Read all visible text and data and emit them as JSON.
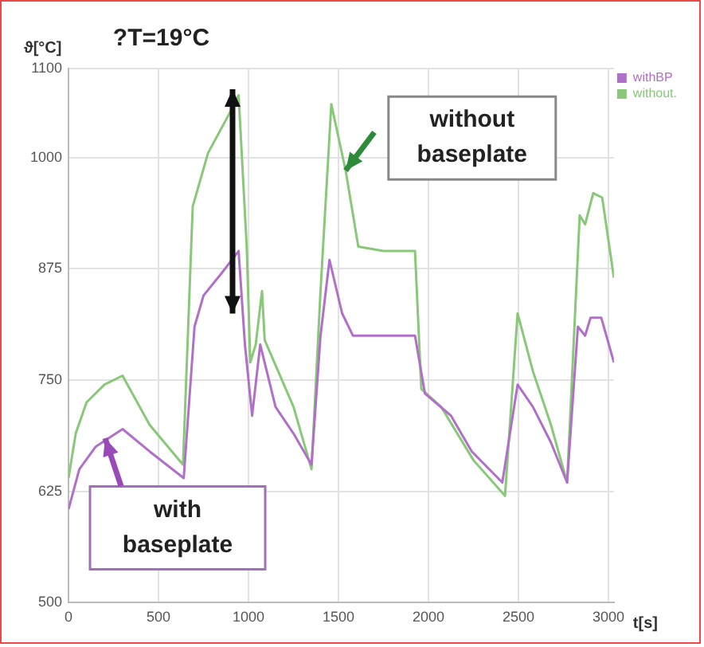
{
  "chart_data": {
    "type": "line",
    "xlabel": "t[s]",
    "ylabel": "ϑ[°C]",
    "xlim": [
      0,
      3030
    ],
    "xticks": [
      0,
      500,
      1000,
      1500,
      2000,
      2500,
      3000
    ],
    "ylim": [
      500,
      1100
    ],
    "yticks": [
      500,
      625,
      750,
      875,
      1000,
      1100
    ],
    "grid": true,
    "legend": "top right",
    "marker": "none",
    "line_style": "solid",
    "annotations": [
      "?T=19°C",
      {
        "text": "without baseplate",
        "x": 1540,
        "y": 985
      },
      {
        "text": "with baseplate",
        "x": 200,
        "y": 685
      }
    ],
    "series": [
      {
        "name": "withBP",
        "color": "#b070c8",
        "x": [
          0,
          60,
          150,
          300,
          450,
          640,
          700,
          750,
          850,
          945,
          980,
          1020,
          1065,
          1150,
          1250,
          1350,
          1400,
          1450,
          1520,
          1580,
          1750,
          1925,
          1980,
          2125,
          2240,
          2410,
          2495,
          2580,
          2680,
          2770,
          2830,
          2870,
          2900,
          2960,
          3030
        ],
        "values": [
          605,
          650,
          675,
          695,
          670,
          640,
          810,
          845,
          870,
          895,
          790,
          710,
          790,
          720,
          690,
          655,
          800,
          885,
          825,
          800,
          800,
          800,
          735,
          710,
          670,
          635,
          745,
          720,
          680,
          635,
          810,
          800,
          820,
          820,
          770
        ]
      },
      {
        "name": "without.",
        "color": "#88c878",
        "x": [
          0,
          40,
          100,
          200,
          300,
          450,
          636,
          690,
          775,
          895,
          945,
          990,
          1010,
          1040,
          1075,
          1090,
          1250,
          1350,
          1400,
          1460,
          1540,
          1610,
          1750,
          1925,
          1960,
          2070,
          2250,
          2425,
          2495,
          2580,
          2680,
          2770,
          2840,
          2870,
          2915,
          2965,
          3030
        ],
        "values": [
          640,
          690,
          725,
          745,
          755,
          700,
          655,
          945,
          1005,
          1050,
          1070,
          900,
          770,
          790,
          850,
          795,
          720,
          650,
          850,
          1060,
          985,
          900,
          895,
          895,
          740,
          720,
          660,
          620,
          825,
          760,
          700,
          635,
          935,
          925,
          960,
          955,
          865
        ]
      }
    ]
  }
}
